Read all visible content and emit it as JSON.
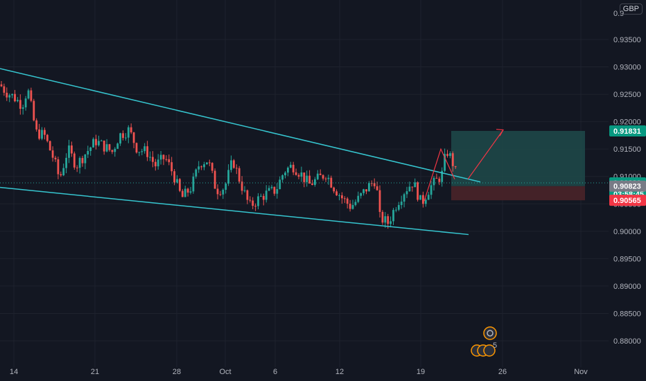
{
  "chart_data": {
    "type": "candlestick",
    "currency": "GBP",
    "y_ticks": [
      "0.93500",
      "0.93000",
      "0.92500",
      "0.92000",
      "0.91500",
      "0.91000",
      "0.90500",
      "0.90000",
      "0.89500",
      "0.89000",
      "0.88500",
      "0.88000"
    ],
    "y_tick_values": [
      0.935,
      0.93,
      0.925,
      0.92,
      0.915,
      0.91,
      0.905,
      0.9,
      0.895,
      0.89,
      0.885,
      0.88
    ],
    "y_top_partial": "0.9",
    "ylim": [
      0.8777,
      0.9412
    ],
    "x_labels": [
      "14",
      "21",
      "28",
      "Oct",
      "6",
      "12",
      "19",
      "26",
      "Nov"
    ],
    "price_badges": [
      {
        "label": "0.91831",
        "value": 0.91831,
        "color": "#089981"
      },
      {
        "label": "0.90883",
        "value": 0.90883,
        "color": "#089981"
      },
      {
        "label": "03:58:45",
        "value": 0.9068,
        "color": "#089981"
      },
      {
        "label": "0.90823",
        "value": 0.90823,
        "color": "#787b86"
      },
      {
        "label": "0.90565",
        "value": 0.90565,
        "color": "#f23645"
      }
    ],
    "current_price": 0.90883,
    "trade": {
      "entry": 0.90823,
      "target": 0.91831,
      "stop": 0.90565
    },
    "colors": {
      "up": "#26a69a",
      "down": "#ef5350",
      "trendline": "#36c6d0",
      "background": "#131722",
      "grid": "#1e222d",
      "profit_zone": "#1e4a4a",
      "loss_zone": "#4a2329",
      "arrow": "#f23645"
    },
    "events_badge_count": "5"
  }
}
